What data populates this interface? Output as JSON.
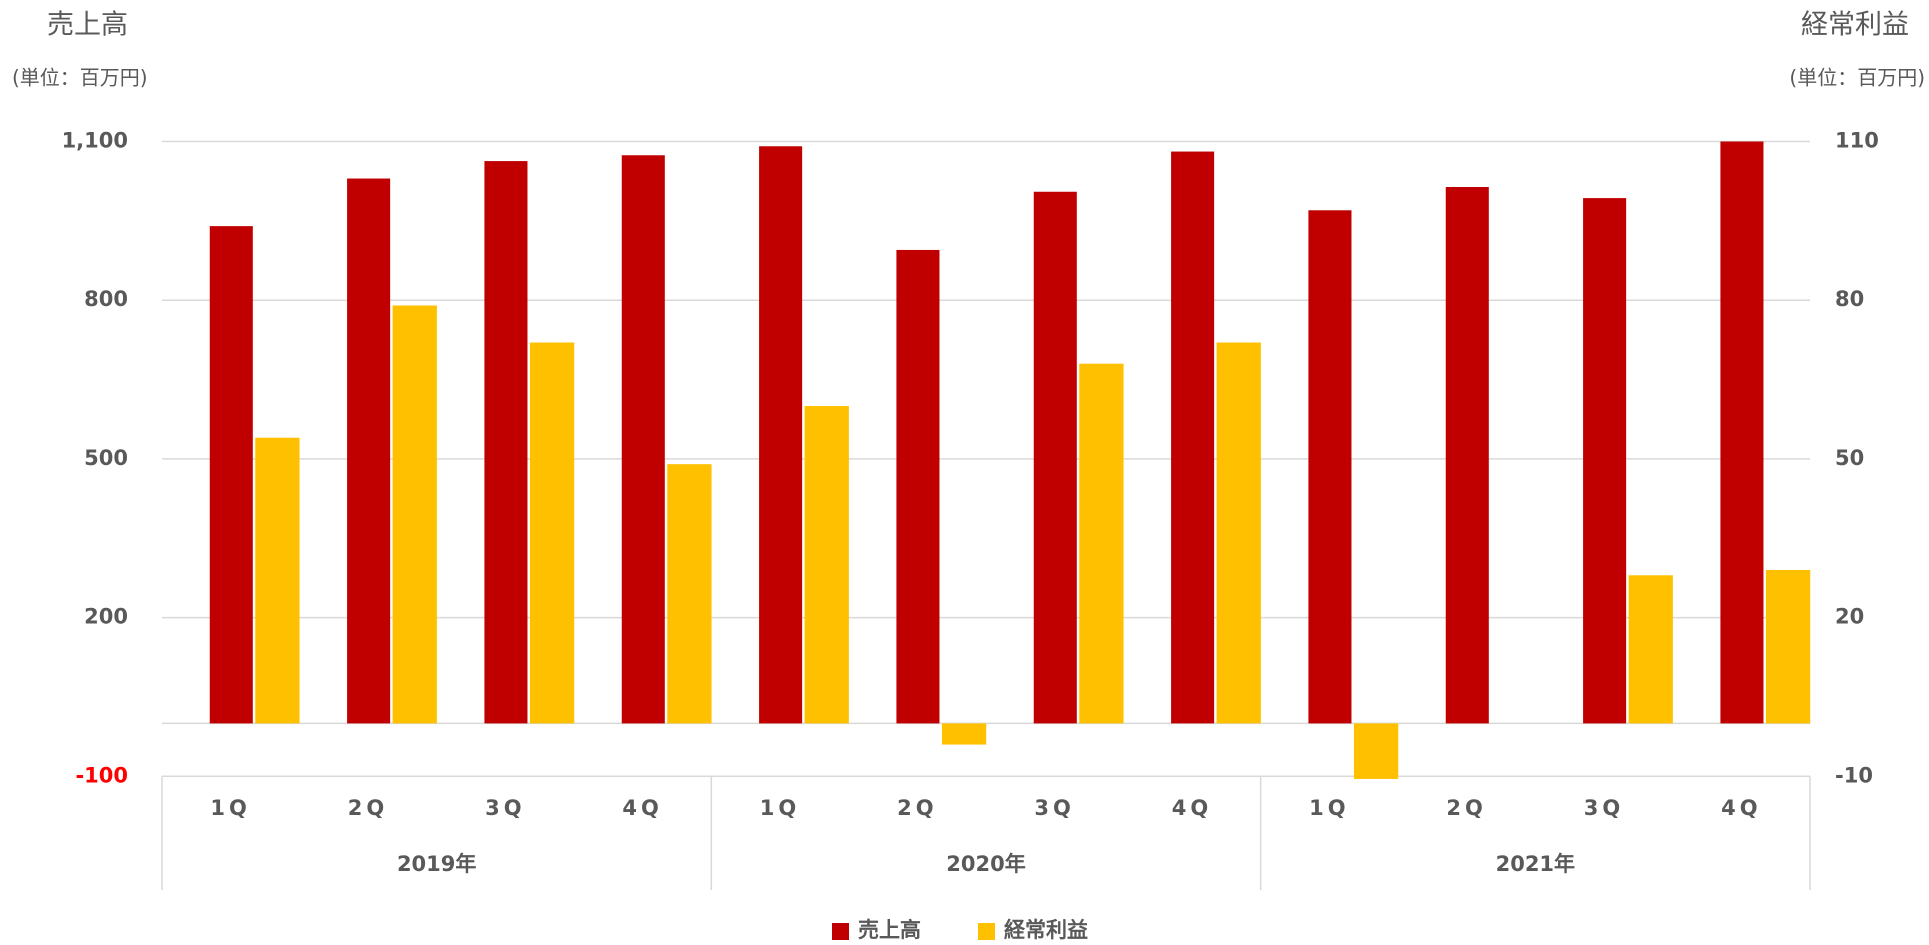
{
  "chart_data": {
    "type": "bar",
    "y_axis_title": "売上高",
    "y2_axis_title": "経常利益",
    "y_unit": "(単位：百万円)",
    "y2_unit": "(単位：百万円)",
    "categories": [
      "1Q",
      "2Q",
      "3Q",
      "4Q",
      "1Q",
      "2Q",
      "3Q",
      "4Q",
      "1Q",
      "2Q",
      "3Q",
      "4Q"
    ],
    "groups": [
      "2019年",
      "2020年",
      "2021年"
    ],
    "series": [
      {
        "name": "売上高",
        "color": "#c00000",
        "axis": "y",
        "values": [
          940,
          1030,
          1063,
          1074,
          1091,
          895,
          1005,
          1081,
          970,
          1014,
          993,
          1100
        ]
      },
      {
        "name": "経常利益",
        "color": "#ffc000",
        "axis": "y2",
        "values": [
          54,
          79,
          72,
          49,
          60,
          -4,
          68,
          72,
          -10.5,
          0,
          28,
          29
        ]
      }
    ],
    "ylim": [
      -100,
      1100
    ],
    "yticks": [
      -100,
      200,
      500,
      800,
      {
        "value": 1100,
        "label": "1,100"
      }
    ],
    "y2lim": [
      -10,
      110
    ],
    "y2ticks": [
      -10,
      20,
      50,
      80,
      110
    ],
    "min_ytick_color": "#ff0000",
    "grid": true,
    "legend": "bottom"
  }
}
